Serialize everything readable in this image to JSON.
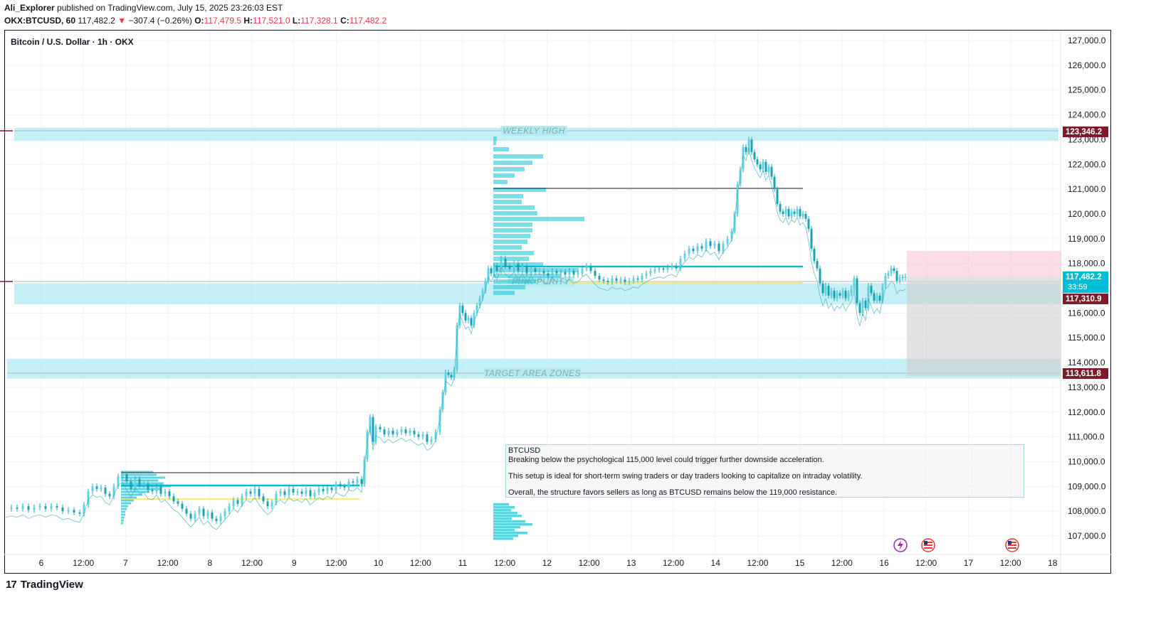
{
  "header": {
    "author": "Ali_Explorer",
    "published_text": "published on TradingView.com, July 15, 2025 23:26:03 EST",
    "symbol": "OKX:BTCUSD, 60",
    "last": "117,482.2",
    "change_arrow": "▼",
    "change": "−307.4 (−0.26%)",
    "open_label": "O:",
    "open": "117,479.5",
    "high_label": "H:",
    "high": "117,521.0",
    "low_label": "L:",
    "low": "117,328.1",
    "close_label": "C:",
    "close": "117,482.2"
  },
  "legend": {
    "title": "Bitcoin / U.S. Dollar · 1h · OKX"
  },
  "footer": {
    "brand": "TradingView",
    "mark": "17"
  },
  "note": {
    "title": "BTCUSD",
    "lines": [
      "Breaking below the psychological 115,000 level could trigger further downside acceleration.",
      "This setup is ideal for short-term swing traders or day traders looking to capitalize on intraday volatility.",
      "Overall, the structure favors sellers as long as BTCUSD remains below the 119,000 resistance."
    ]
  },
  "chart_data": {
    "type": "line",
    "title": "Bitcoin / U.S. Dollar · 1h · OKX",
    "xlabel": "",
    "ylabel": "",
    "x_ticks": [
      "6",
      "12:00",
      "7",
      "12:00",
      "8",
      "12:00",
      "9",
      "12:00",
      "10",
      "12:00",
      "11",
      "12:00",
      "12",
      "12:00",
      "13",
      "12:00",
      "14",
      "12:00",
      "15",
      "12:00",
      "16",
      "12:00",
      "17",
      "12:00",
      "18"
    ],
    "y_ticks": [
      "127,000.0",
      "126,000.0",
      "125,000.0",
      "124,000.0",
      "123,000.0",
      "122,000.0",
      "121,000.0",
      "120,000.0",
      "119,000.0",
      "118,000.0",
      "117,000.0",
      "116,000.0",
      "115,000.0",
      "114,000.0",
      "113,000.0",
      "112,000.0",
      "111,000.0",
      "110,000.0",
      "109,000.0",
      "108,000.0",
      "107,000.0"
    ],
    "ylim": [
      106500,
      127300
    ],
    "grid": true,
    "zones": [
      {
        "label": "WEEKLY HIGH",
        "low": 122950,
        "high": 123480
      },
      {
        "label": "PINK-PURITY",
        "low": 116350,
        "high": 117200
      },
      {
        "label": "TARGET AREA ZONES",
        "low": 113350,
        "high": 114150
      }
    ],
    "price_labels": [
      {
        "value": "123,346.2",
        "color": "#7b1c2a"
      },
      {
        "value": "117,482.2",
        "sub": "33:59",
        "color": "#00bcd4"
      },
      {
        "value": "117,310.9",
        "color": "#7b1c2a"
      },
      {
        "value": "113,611.8",
        "color": "#7b1c2a"
      }
    ],
    "series": [
      {
        "values": [
          [
            0,
            108100
          ],
          [
            8,
            108150
          ],
          [
            16,
            108100
          ],
          [
            24,
            108200
          ],
          [
            32,
            108050
          ],
          [
            40,
            108150
          ],
          [
            48,
            108200
          ],
          [
            56,
            108100
          ],
          [
            64,
            108200
          ],
          [
            72,
            108150
          ],
          [
            80,
            108000
          ],
          [
            88,
            108050
          ],
          [
            96,
            107950
          ],
          [
            104,
            107900
          ],
          [
            110,
            108250
          ],
          [
            116,
            108800
          ],
          [
            122,
            109000
          ],
          [
            128,
            108900
          ],
          [
            134,
            108950
          ],
          [
            140,
            108700
          ],
          [
            146,
            108600
          ],
          [
            152,
            109000
          ],
          [
            158,
            109400
          ],
          [
            164,
            109500
          ],
          [
            170,
            109200
          ],
          [
            176,
            108900
          ],
          [
            182,
            109300
          ],
          [
            188,
            109050
          ],
          [
            194,
            109100
          ],
          [
            200,
            108850
          ],
          [
            206,
            108800
          ],
          [
            212,
            109000
          ],
          [
            218,
            108700
          ],
          [
            224,
            108800
          ],
          [
            230,
            108600
          ],
          [
            236,
            108400
          ],
          [
            242,
            108300
          ],
          [
            248,
            108100
          ],
          [
            254,
            107900
          ],
          [
            260,
            107700
          ],
          [
            266,
            107900
          ],
          [
            272,
            108100
          ],
          [
            278,
            107800
          ],
          [
            284,
            107950
          ],
          [
            290,
            107700
          ],
          [
            296,
            107600
          ],
          [
            302,
            107800
          ],
          [
            308,
            108000
          ],
          [
            314,
            108200
          ],
          [
            320,
            108450
          ],
          [
            326,
            108300
          ],
          [
            332,
            108600
          ],
          [
            338,
            108800
          ],
          [
            344,
            108700
          ],
          [
            350,
            108900
          ],
          [
            356,
            108600
          ],
          [
            362,
            108400
          ],
          [
            368,
            108200
          ],
          [
            374,
            108350
          ],
          [
            380,
            108700
          ],
          [
            386,
            108800
          ],
          [
            392,
            108650
          ],
          [
            398,
            108900
          ],
          [
            404,
            108750
          ],
          [
            410,
            108800
          ],
          [
            416,
            108700
          ],
          [
            422,
            108850
          ],
          [
            428,
            108600
          ],
          [
            434,
            108750
          ],
          [
            440,
            108900
          ],
          [
            446,
            108800
          ],
          [
            452,
            108950
          ],
          [
            458,
            108850
          ],
          [
            464,
            109100
          ],
          [
            470,
            109000
          ],
          [
            476,
            108950
          ],
          [
            482,
            109200
          ],
          [
            488,
            109150
          ],
          [
            494,
            109300
          ],
          [
            500,
            109100
          ],
          [
            504,
            110100
          ],
          [
            508,
            111200
          ],
          [
            512,
            111800
          ],
          [
            516,
            110800
          ],
          [
            520,
            111400
          ],
          [
            526,
            111300
          ],
          [
            532,
            111100
          ],
          [
            538,
            111250
          ],
          [
            544,
            111100
          ],
          [
            550,
            111200
          ],
          [
            556,
            111300
          ],
          [
            562,
            111150
          ],
          [
            568,
            111250
          ],
          [
            574,
            111100
          ],
          [
            580,
            111000
          ],
          [
            586,
            111100
          ],
          [
            592,
            110800
          ],
          [
            598,
            110900
          ],
          [
            604,
            111200
          ],
          [
            610,
            112100
          ],
          [
            614,
            112800
          ],
          [
            618,
            113600
          ],
          [
            622,
            113500
          ],
          [
            626,
            113400
          ],
          [
            630,
            113700
          ],
          [
            634,
            115500
          ],
          [
            638,
            116300
          ],
          [
            642,
            116000
          ],
          [
            646,
            115700
          ],
          [
            650,
            115800
          ],
          [
            654,
            115500
          ],
          [
            658,
            116000
          ],
          [
            662,
            116300
          ],
          [
            666,
            116600
          ],
          [
            670,
            116900
          ],
          [
            674,
            117300
          ],
          [
            678,
            117800
          ],
          [
            682,
            117600
          ],
          [
            686,
            117900
          ],
          [
            690,
            117700
          ],
          [
            696,
            118200
          ],
          [
            702,
            117900
          ],
          [
            708,
            117800
          ],
          [
            714,
            118000
          ],
          [
            720,
            117700
          ],
          [
            726,
            117900
          ],
          [
            732,
            117600
          ],
          [
            738,
            117800
          ],
          [
            744,
            117650
          ],
          [
            750,
            117700
          ],
          [
            756,
            117600
          ],
          [
            762,
            117500
          ],
          [
            768,
            117700
          ],
          [
            774,
            117600
          ],
          [
            780,
            117650
          ],
          [
            786,
            117550
          ],
          [
            792,
            117700
          ],
          [
            798,
            117550
          ],
          [
            804,
            117600
          ],
          [
            810,
            117800
          ],
          [
            816,
            117900
          ],
          [
            822,
            117700
          ],
          [
            828,
            117500
          ],
          [
            834,
            117350
          ],
          [
            840,
            117300
          ],
          [
            846,
            117250
          ],
          [
            852,
            117400
          ],
          [
            858,
            117300
          ],
          [
            864,
            117350
          ],
          [
            870,
            117250
          ],
          [
            876,
            117300
          ],
          [
            882,
            117400
          ],
          [
            888,
            117350
          ],
          [
            894,
            117500
          ],
          [
            900,
            117600
          ],
          [
            906,
            117700
          ],
          [
            912,
            117750
          ],
          [
            918,
            117800
          ],
          [
            924,
            117750
          ],
          [
            930,
            117850
          ],
          [
            936,
            117900
          ],
          [
            942,
            117800
          ],
          [
            948,
            118200
          ],
          [
            954,
            118400
          ],
          [
            960,
            118600
          ],
          [
            966,
            118500
          ],
          [
            972,
            118700
          ],
          [
            978,
            118600
          ],
          [
            984,
            118900
          ],
          [
            990,
            118700
          ],
          [
            996,
            118800
          ],
          [
            1002,
            118500
          ],
          [
            1008,
            118800
          ],
          [
            1014,
            119000
          ],
          [
            1020,
            119300
          ],
          [
            1024,
            120000
          ],
          [
            1028,
            121200
          ],
          [
            1032,
            121800
          ],
          [
            1036,
            122700
          ],
          [
            1040,
            122500
          ],
          [
            1044,
            123000
          ],
          [
            1048,
            122500
          ],
          [
            1052,
            122200
          ],
          [
            1056,
            122000
          ],
          [
            1060,
            121800
          ],
          [
            1064,
            122100
          ],
          [
            1068,
            121700
          ],
          [
            1072,
            121900
          ],
          [
            1076,
            121500
          ],
          [
            1080,
            121000
          ],
          [
            1084,
            120400
          ],
          [
            1088,
            120100
          ],
          [
            1092,
            120000
          ],
          [
            1096,
            120200
          ],
          [
            1100,
            119900
          ],
          [
            1104,
            120100
          ],
          [
            1108,
            120000
          ],
          [
            1112,
            120200
          ],
          [
            1116,
            119900
          ],
          [
            1120,
            120000
          ],
          [
            1124,
            119800
          ],
          [
            1128,
            119400
          ],
          [
            1132,
            118600
          ],
          [
            1136,
            118100
          ],
          [
            1140,
            117800
          ],
          [
            1144,
            117200
          ],
          [
            1148,
            116800
          ],
          [
            1152,
            117100
          ],
          [
            1156,
            116700
          ],
          [
            1160,
            116900
          ],
          [
            1164,
            116600
          ],
          [
            1168,
            116800
          ],
          [
            1172,
            116700
          ],
          [
            1176,
            116900
          ],
          [
            1180,
            116600
          ],
          [
            1184,
            116800
          ],
          [
            1188,
            117000
          ],
          [
            1192,
            117400
          ],
          [
            1196,
            116400
          ],
          [
            1200,
            116000
          ],
          [
            1204,
            116500
          ],
          [
            1208,
            116200
          ],
          [
            1212,
            117100
          ],
          [
            1216,
            116800
          ],
          [
            1220,
            116500
          ],
          [
            1224,
            116700
          ],
          [
            1228,
            116500
          ],
          [
            1232,
            117100
          ],
          [
            1236,
            117500
          ],
          [
            1240,
            117600
          ],
          [
            1244,
            117800
          ],
          [
            1248,
            117700
          ],
          [
            1252,
            117300
          ],
          [
            1256,
            117450
          ],
          [
            1260,
            117420
          ],
          [
            1264,
            117480
          ]
        ]
      }
    ]
  }
}
